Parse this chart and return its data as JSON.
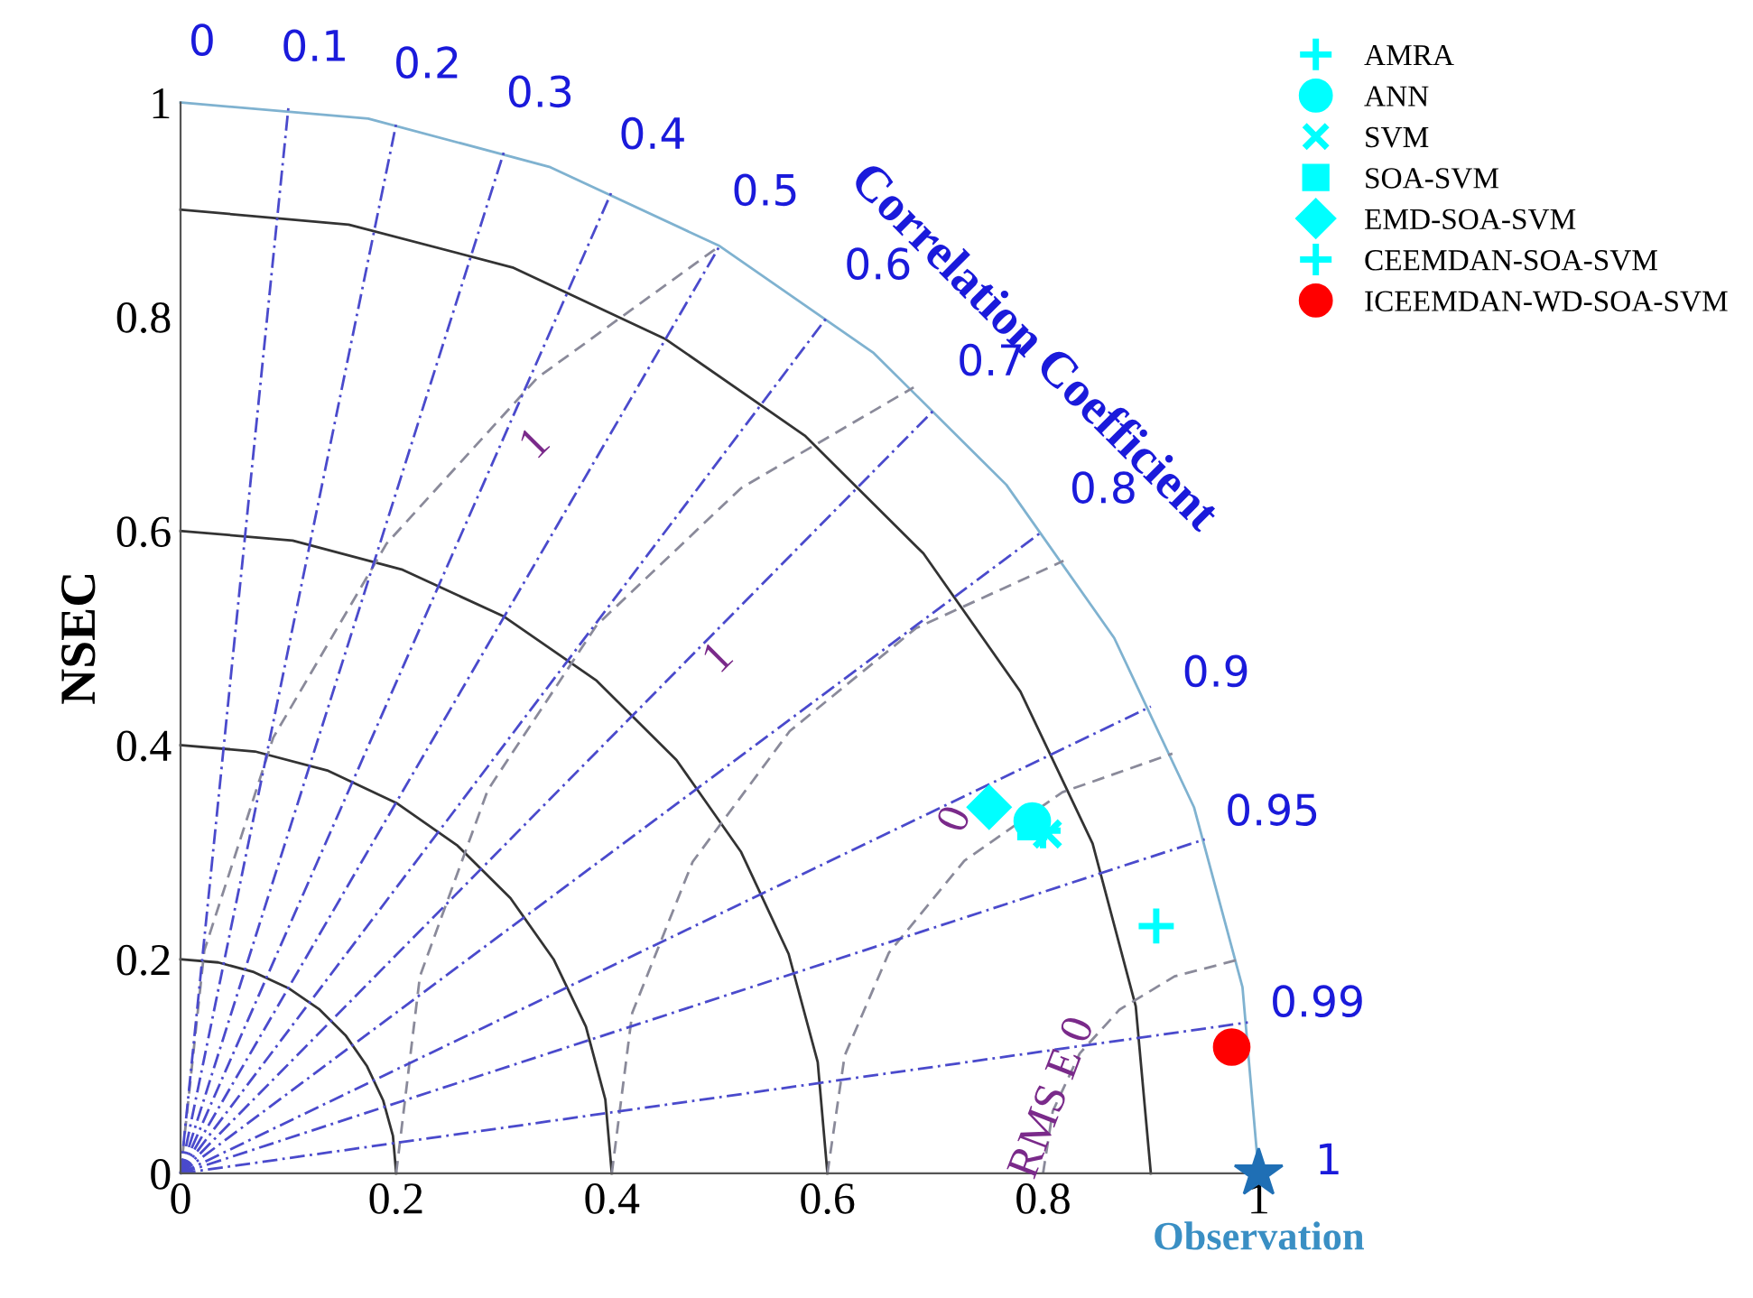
{
  "chart_data": {
    "type": "scatter",
    "ylabel": "NSEC",
    "xlabel": "Observation",
    "xlim": [
      0,
      1
    ],
    "ylim": [
      0,
      1
    ],
    "xticks": [
      0,
      0.2,
      0.4,
      0.6,
      0.8,
      1
    ],
    "yticks": [
      0,
      0.2,
      0.4,
      0.6,
      0.8,
      1
    ],
    "grid": false,
    "legend": "top right",
    "series": [
      {
        "name": "AMRA",
        "color": "#00ffff",
        "marker": "plus",
        "x": [
          0.905
        ],
        "values": [
          0.231
        ]
      },
      {
        "name": "ANN",
        "color": "#00ffff",
        "marker": "circle",
        "x": [
          0.79
        ],
        "values": [
          0.329
        ]
      },
      {
        "name": "SVM",
        "color": "#00ffff",
        "marker": "cross",
        "x": [
          0.804
        ],
        "values": [
          0.317
        ]
      },
      {
        "name": "SOA-SVM",
        "color": "#00ffff",
        "marker": "square",
        "x": [
          0.79
        ],
        "values": [
          0.325
        ]
      },
      {
        "name": "EMD-SOA-SVM",
        "color": "#00ffff",
        "marker": "diamond",
        "x": [
          0.75
        ],
        "values": [
          0.342
        ]
      },
      {
        "name": "CEEMDAN-SOA-SVM",
        "color": "#00ffff",
        "marker": "plus",
        "x": [
          0.8
        ],
        "values": [
          0.32
        ]
      },
      {
        "name": "ICEEMDAN-WD-SOA-SVM",
        "color": "#ff0000",
        "marker": "circle",
        "x": [
          0.975
        ],
        "values": [
          0.118
        ]
      },
      {
        "color": "#1f6fb5",
        "marker": "star",
        "x": [
          1
        ],
        "values": [
          0
        ]
      },
      {
        "type": "line",
        "color": "#333333",
        "line_style": "solid",
        "marker": "none",
        "x": [
          0.2,
          0.197,
          0.188,
          0.173,
          0.153,
          0.129,
          0.1,
          0.068,
          0.035,
          0
        ],
        "values": [
          0,
          0.035,
          0.068,
          0.1,
          0.129,
          0.153,
          0.173,
          0.188,
          0.197,
          0.2
        ]
      },
      {
        "type": "line",
        "color": "#333333",
        "line_style": "solid",
        "marker": "none",
        "x": [
          0.4,
          0.394,
          0.376,
          0.346,
          0.306,
          0.257,
          0.2,
          0.137,
          0.069,
          0
        ],
        "values": [
          0,
          0.069,
          0.137,
          0.2,
          0.257,
          0.306,
          0.346,
          0.376,
          0.394,
          0.4
        ]
      },
      {
        "type": "line",
        "color": "#333333",
        "line_style": "solid",
        "marker": "none",
        "x": [
          0.6,
          0.591,
          0.564,
          0.52,
          0.46,
          0.386,
          0.3,
          0.205,
          0.104,
          0
        ],
        "values": [
          0,
          0.104,
          0.205,
          0.3,
          0.386,
          0.46,
          0.52,
          0.564,
          0.591,
          0.6
        ]
      },
      {
        "type": "line",
        "color": "#333333",
        "line_style": "solid",
        "marker": "none",
        "x": [
          0.9,
          0.886,
          0.846,
          0.779,
          0.689,
          0.579,
          0.45,
          0.308,
          0.156,
          0
        ],
        "values": [
          0,
          0.156,
          0.308,
          0.45,
          0.579,
          0.689,
          0.779,
          0.846,
          0.886,
          0.9
        ]
      },
      {
        "type": "line",
        "color": "#7fb2d0",
        "line_style": "solid",
        "marker": "none",
        "x": [
          1,
          0.985,
          0.94,
          0.866,
          0.766,
          0.643,
          0.5,
          0.342,
          0.174,
          0
        ],
        "values": [
          0,
          0.174,
          0.342,
          0.5,
          0.643,
          0.766,
          0.866,
          0.94,
          0.985,
          1
        ]
      },
      {
        "type": "line",
        "color": "#8a8a9a",
        "line_style": "dashed",
        "marker": "none",
        "x": [
          0.8,
          0.809,
          0.834,
          0.871,
          0.922,
          0.979
        ],
        "values": [
          0,
          0.058,
          0.112,
          0.153,
          0.184,
          0.199
        ]
      },
      {
        "type": "line",
        "color": "#8a8a9a",
        "line_style": "dashed",
        "marker": "none",
        "x": [
          0.6,
          0.616,
          0.657,
          0.727,
          0.818,
          0.92
        ],
        "values": [
          0,
          0.11,
          0.206,
          0.292,
          0.356,
          0.392
        ]
      },
      {
        "type": "line",
        "color": "#8a8a9a",
        "line_style": "dashed",
        "marker": "none",
        "x": [
          0.4,
          0.419,
          0.475,
          0.565,
          0.682,
          0.819
        ],
        "values": [
          0,
          0.15,
          0.291,
          0.413,
          0.509,
          0.572
        ]
      },
      {
        "type": "line",
        "color": "#8a8a9a",
        "line_style": "dashed",
        "marker": "none",
        "x": [
          0.2,
          0.222,
          0.285,
          0.386,
          0.52,
          0.68
        ],
        "values": [
          0,
          0.184,
          0.358,
          0.512,
          0.64,
          0.734
        ]
      },
      {
        "type": "line",
        "color": "#8a8a9a",
        "line_style": "dashed",
        "marker": "none",
        "x": [
          0,
          0.022,
          0.086,
          0.191,
          0.331,
          0.5
        ],
        "values": [
          0,
          0.208,
          0.407,
          0.588,
          0.743,
          0.866
        ]
      },
      {
        "type": "line",
        "color": "#4a4acc",
        "line_style": "dashdot",
        "marker": "none",
        "x": [
          0,
          0.1
        ],
        "values": [
          0,
          0.995
        ]
      },
      {
        "type": "line",
        "color": "#4a4acc",
        "line_style": "dashdot",
        "marker": "none",
        "x": [
          0,
          0.2
        ],
        "values": [
          0,
          0.98
        ]
      },
      {
        "type": "line",
        "color": "#4a4acc",
        "line_style": "dashdot",
        "marker": "none",
        "x": [
          0,
          0.3
        ],
        "values": [
          0,
          0.954
        ]
      },
      {
        "type": "line",
        "color": "#4a4acc",
        "line_style": "dashdot",
        "marker": "none",
        "x": [
          0,
          0.4
        ],
        "values": [
          0,
          0.917
        ]
      },
      {
        "type": "line",
        "color": "#4a4acc",
        "line_style": "dashdot",
        "marker": "none",
        "x": [
          0,
          0.5
        ],
        "values": [
          0,
          0.866
        ]
      },
      {
        "type": "line",
        "color": "#4a4acc",
        "line_style": "dashdot",
        "marker": "none",
        "x": [
          0,
          0.6
        ],
        "values": [
          0,
          0.8
        ]
      },
      {
        "type": "line",
        "color": "#4a4acc",
        "line_style": "dashdot",
        "marker": "none",
        "x": [
          0,
          0.7
        ],
        "values": [
          0,
          0.714
        ]
      },
      {
        "type": "line",
        "color": "#4a4acc",
        "line_style": "dashdot",
        "marker": "none",
        "x": [
          0,
          0.8
        ],
        "values": [
          0,
          0.6
        ]
      },
      {
        "type": "line",
        "color": "#4a4acc",
        "line_style": "dashdot",
        "marker": "none",
        "x": [
          0,
          0.9
        ],
        "values": [
          0,
          0.436
        ]
      },
      {
        "type": "line",
        "color": "#4a4acc",
        "line_style": "dashdot",
        "marker": "none",
        "x": [
          0,
          0.95
        ],
        "values": [
          0,
          0.312
        ]
      },
      {
        "type": "line",
        "color": "#4a4acc",
        "line_style": "dashdot",
        "marker": "none",
        "x": [
          0,
          0.99
        ],
        "values": [
          0,
          0.141
        ]
      }
    ],
    "annotations": [
      "Correlation Coefficient",
      "1",
      "1",
      "0",
      "RMS E 0",
      {
        "text": "0",
        "x": 0,
        "y": 1
      },
      {
        "text": "0.1",
        "x": 0.1,
        "y": 0.995
      },
      {
        "text": "0.2",
        "x": 0.2,
        "y": 0.98
      },
      {
        "text": "0.3",
        "x": 0.3,
        "y": 0.954
      },
      {
        "text": "0.4",
        "x": 0.4,
        "y": 0.917
      },
      {
        "text": "0.5",
        "x": 0.5,
        "y": 0.866
      },
      {
        "text": "0.6",
        "x": 0.6,
        "y": 0.8
      },
      {
        "text": "0.7",
        "x": 0.7,
        "y": 0.714
      },
      {
        "text": "0.8",
        "x": 0.8,
        "y": 0.6
      },
      {
        "text": "0.9",
        "x": 0.9,
        "y": 0.436
      },
      {
        "text": "0.95",
        "x": 0.95,
        "y": 0.312
      },
      {
        "text": "0.99",
        "x": 0.99,
        "y": 0.141
      },
      {
        "text": "1",
        "x": 1,
        "y": 0
      }
    ]
  }
}
